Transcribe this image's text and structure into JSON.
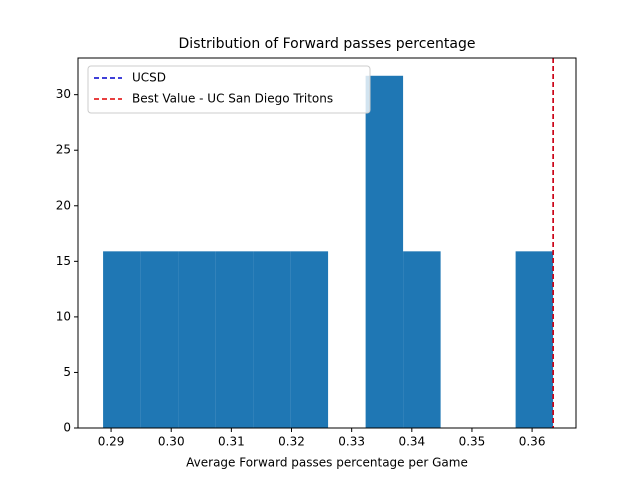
{
  "chart_data": {
    "type": "histogram",
    "title": "Distribution of Forward passes percentage",
    "xlabel": "Average Forward passes percentage per Game",
    "bins": [
      0.28867,
      0.29491,
      0.30114,
      0.30738,
      0.31361,
      0.31985,
      0.32608,
      0.33232,
      0.33855,
      0.34479,
      0.35102,
      0.35726,
      0.36349
    ],
    "values": [
      15.9,
      15.9,
      15.9,
      15.9,
      15.9,
      15.9,
      0,
      31.7,
      15.9,
      0,
      0,
      15.9
    ],
    "color": "#1f77b4",
    "xlim": [
      0.2845,
      0.3673
    ],
    "ylim": [
      0,
      33.3
    ],
    "xticks": [
      0.29,
      {
        "value": 0.3,
        "label": "0.30"
      },
      0.31,
      0.32,
      0.33,
      0.34,
      0.35,
      0.36
    ],
    "yticks": [
      0,
      5,
      10,
      15,
      20,
      25,
      30
    ],
    "lines": [
      {
        "name": "UCSD",
        "color": "#0000cc",
        "value": 0.3635
      },
      {
        "name": "Best Value - UC San Diego Tritons",
        "color": "#e00000",
        "value": 0.3635
      }
    ],
    "legend": "upper left"
  }
}
